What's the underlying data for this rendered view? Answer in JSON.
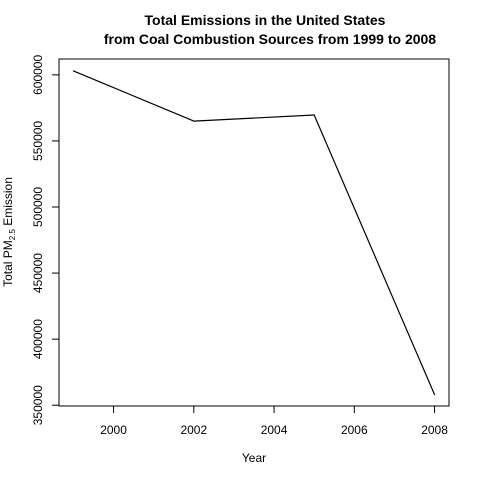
{
  "chart_data": {
    "type": "line",
    "title_lines": [
      "Total Emissions in the United States",
      "from Coal Combustion Sources from 1999 to 2008"
    ],
    "xlabel": "Year",
    "ylabel_main": "Total PM",
    "ylabel_sub": "2.5",
    "ylabel_end": " Emission",
    "x": [
      1999,
      2002,
      2005,
      2008
    ],
    "values": [
      603000,
      565000,
      569600,
      358000
    ],
    "xlim": [
      1998.64,
      2008.36
    ],
    "ylim": [
      349400,
      612000
    ],
    "x_ticks": [
      2000,
      2002,
      2004,
      2006,
      2008
    ],
    "y_ticks": [
      350000,
      400000,
      450000,
      500000,
      550000,
      600000
    ],
    "line_color": "#000000",
    "grid": false,
    "legend": "none"
  }
}
